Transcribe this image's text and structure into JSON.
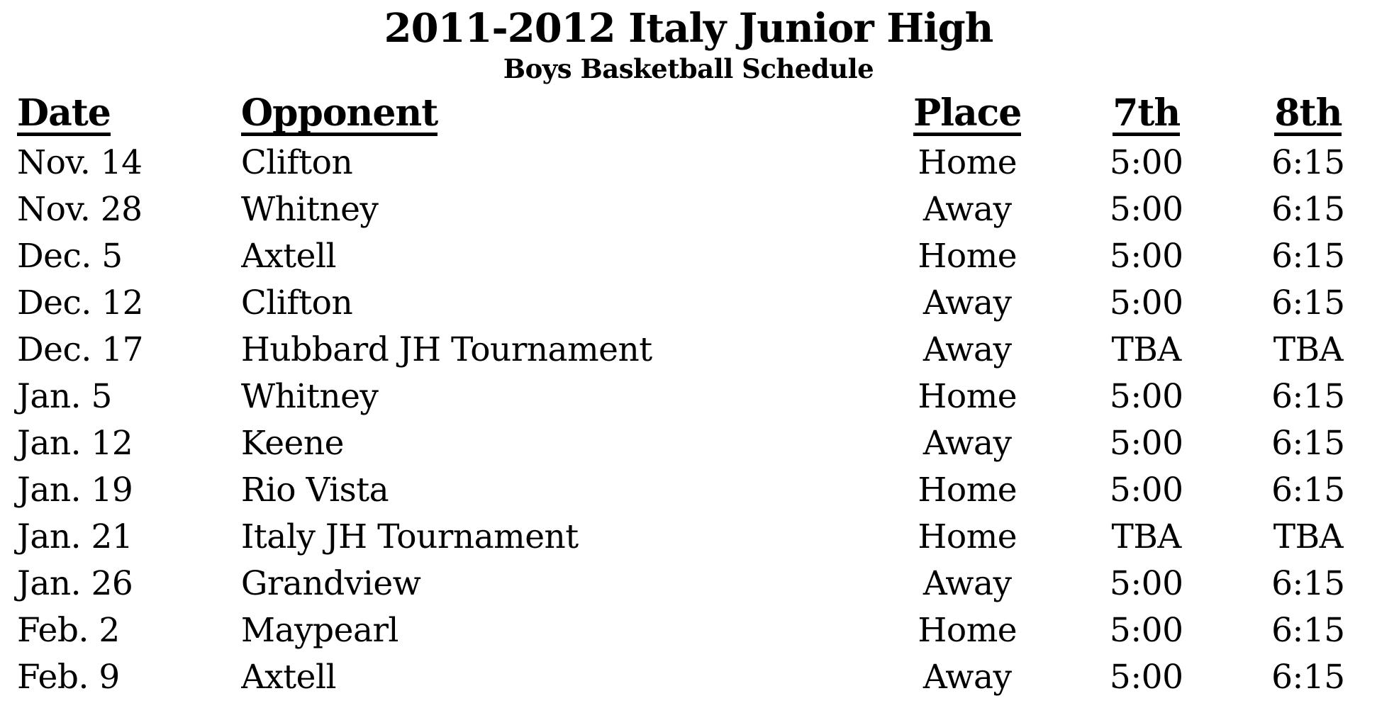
{
  "page": {
    "title": "2011-2012 Italy Junior High",
    "subtitle": "Boys Basketball Schedule"
  },
  "table": {
    "columns": [
      "Date",
      "Opponent",
      "Place",
      "7th",
      "8th"
    ],
    "rows": [
      {
        "date": "Nov. 14",
        "opponent": "Clifton",
        "place": "Home",
        "seventh": "5:00",
        "eighth": "6:15"
      },
      {
        "date": "Nov. 28",
        "opponent": "Whitney",
        "place": "Away",
        "seventh": "5:00",
        "eighth": "6:15"
      },
      {
        "date": "Dec. 5",
        "opponent": "Axtell",
        "place": "Home",
        "seventh": "5:00",
        "eighth": "6:15"
      },
      {
        "date": "Dec. 12",
        "opponent": "Clifton",
        "place": "Away",
        "seventh": "5:00",
        "eighth": "6:15"
      },
      {
        "date": "Dec. 17",
        "opponent": "Hubbard JH Tournament",
        "place": "Away",
        "seventh": "TBA",
        "eighth": "TBA"
      },
      {
        "date": "Jan. 5",
        "opponent": "Whitney",
        "place": "Home",
        "seventh": "5:00",
        "eighth": "6:15"
      },
      {
        "date": "Jan. 12",
        "opponent": "Keene",
        "place": "Away",
        "seventh": "5:00",
        "eighth": "6:15"
      },
      {
        "date": "Jan. 19",
        "opponent": "Rio Vista",
        "place": "Home",
        "seventh": "5:00",
        "eighth": "6:15"
      },
      {
        "date": "Jan. 21",
        "opponent": "Italy JH Tournament",
        "place": "Home",
        "seventh": "TBA",
        "eighth": "TBA"
      },
      {
        "date": "Jan. 26",
        "opponent": "Grandview",
        "place": "Away",
        "seventh": "5:00",
        "eighth": "6:15"
      },
      {
        "date": "Feb. 2",
        "opponent": "Maypearl",
        "place": "Home",
        "seventh": "5:00",
        "eighth": "6:15"
      },
      {
        "date": "Feb. 9",
        "opponent": "Axtell",
        "place": "Away",
        "seventh": "5:00",
        "eighth": "6:15"
      }
    ]
  },
  "colors": {
    "text": "#000000",
    "background": "#ffffff"
  }
}
